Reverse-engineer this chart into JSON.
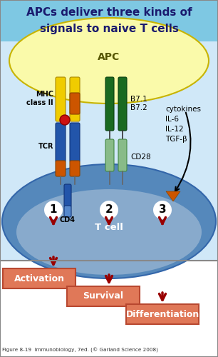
{
  "title_line1": "APCs deliver three kinds of",
  "title_line2": "signals to naive T cells",
  "title_bg": "#7EC8E3",
  "title_color": "#1A1A6E",
  "mid_bg": "#D0E8F8",
  "fig_bg": "#FFFFFF",
  "apc_label": "APC",
  "apc_ellipse_color": "#FAFAAA",
  "apc_ellipse_edge": "#C8B400",
  "cell_ellipse_color_outer": "#5588BB",
  "cell_ellipse_color_inner": "#88AACC",
  "cell_ellipse_edge": "#3366AA",
  "cell_label": "T cell",
  "mhc_label": "MHC\nclass II",
  "tcr_label": "TCR",
  "cd4_label": "CD4",
  "b7_label": "B7.1\nB7.2",
  "cd28_label": "CD28",
  "cytokines_label": "cytokines\nIL-6\nIL-12\nTGF-β",
  "activation_label": "Activation",
  "survival_label": "Survival",
  "differentiation_label": "Differentiation",
  "outcome_box_color": "#E07858",
  "outcome_box_edge": "#B84830",
  "arrow_color": "#990000",
  "orange_color": "#CC5500",
  "caption": "Figure 8-19  Immunobiology, 7ed. (© Garland Science 2008)",
  "border_color": "#888888",
  "yellow_color": "#F0CC00",
  "blue_color": "#2255AA",
  "orange_protein_color": "#CC5500",
  "green_dark": "#1A6A20",
  "green_light": "#88BB88",
  "red_antigen": "#CC1111"
}
